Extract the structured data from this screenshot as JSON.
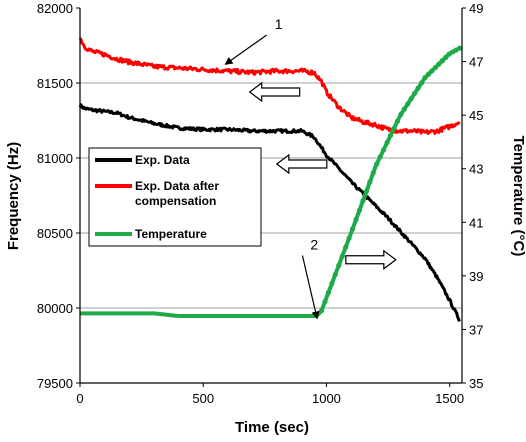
{
  "chart_data": {
    "type": "line",
    "xlabel": "Time (sec)",
    "ylabel": "Frequency (Hz)",
    "y2label": "Temperature (°C)",
    "xlim": [
      0,
      1550
    ],
    "ylim": [
      79500,
      82000
    ],
    "y2lim": [
      35,
      49
    ],
    "x_ticks": [
      0,
      500,
      1000,
      1500
    ],
    "y_ticks": [
      79500,
      80000,
      80500,
      81000,
      81500,
      82000
    ],
    "y2_ticks": [
      35,
      37,
      39,
      41,
      43,
      45,
      47,
      49
    ],
    "grid": "horizontal",
    "legend_position": "center-left",
    "series": [
      {
        "name": "Exp. Data",
        "axis": "left",
        "color": "#000000",
        "x": [
          0,
          20,
          50,
          100,
          150,
          200,
          300,
          400,
          500,
          600,
          700,
          800,
          900,
          950,
          1000,
          1050,
          1100,
          1150,
          1200,
          1250,
          1300,
          1350,
          1400,
          1450,
          1500,
          1540
        ],
        "y": [
          81350,
          81330,
          81320,
          81310,
          81300,
          81270,
          81230,
          81200,
          81190,
          81190,
          81180,
          81180,
          81180,
          81140,
          81020,
          80930,
          80840,
          80760,
          80680,
          80600,
          80510,
          80420,
          80330,
          80200,
          80050,
          79920
        ]
      },
      {
        "name": "Exp. Data after compensation",
        "axis": "left",
        "color": "#ff0000",
        "x": [
          0,
          20,
          50,
          100,
          150,
          200,
          300,
          400,
          500,
          600,
          700,
          800,
          900,
          950,
          980,
          1000,
          1050,
          1100,
          1150,
          1200,
          1250,
          1300,
          1350,
          1400,
          1450,
          1500,
          1540
        ],
        "y": [
          81800,
          81740,
          81710,
          81690,
          81660,
          81640,
          81610,
          81600,
          81590,
          81580,
          81570,
          81580,
          81580,
          81570,
          81510,
          81440,
          81340,
          81270,
          81240,
          81220,
          81190,
          81180,
          81180,
          81170,
          81180,
          81210,
          81240
        ]
      },
      {
        "name": "Temperature",
        "axis": "right",
        "color": "#1faa4a",
        "x": [
          0,
          100,
          200,
          300,
          400,
          500,
          600,
          700,
          800,
          900,
          960,
          980,
          1100,
          1200,
          1300,
          1400,
          1500,
          1540
        ],
        "y": [
          37.6,
          37.6,
          37.6,
          37.6,
          37.5,
          37.5,
          37.5,
          37.5,
          37.5,
          37.5,
          37.5,
          37.7,
          40.6,
          43.1,
          45.0,
          46.4,
          47.3,
          47.5
        ]
      }
    ],
    "annotations": [
      {
        "label": "1",
        "x": 790,
        "y": 81860,
        "target_x": 590,
        "target_y": 81625,
        "axis": "left"
      },
      {
        "label": "2",
        "x": 935,
        "y": 80390,
        "target_x": 962,
        "target_y": 79930,
        "axis": "left"
      }
    ],
    "direction_arrows": [
      {
        "direction": "left",
        "x": 790,
        "y": 81440
      },
      {
        "direction": "left",
        "x": 900,
        "y": 80960
      },
      {
        "direction": "right",
        "x": 1180,
        "y": 39.6,
        "axis": "right"
      }
    ]
  }
}
